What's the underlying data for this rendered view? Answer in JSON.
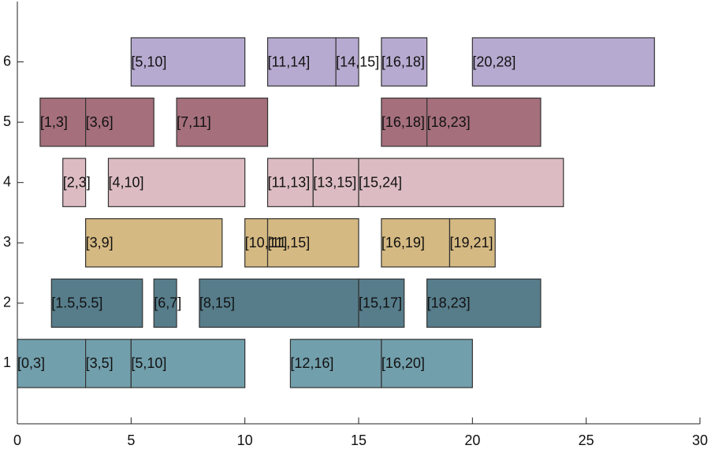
{
  "chart_data": {
    "type": "interval",
    "xlim": [
      0,
      30
    ],
    "xticks": [
      0,
      5,
      10,
      15,
      20,
      25,
      30
    ],
    "ylim": [
      0,
      7
    ],
    "yticks": [
      1,
      2,
      3,
      4,
      5,
      6
    ],
    "series": [
      {
        "row": 1,
        "color": "#729fac",
        "intervals": [
          {
            "start": 0,
            "end": 3,
            "label": "[0,3]"
          },
          {
            "start": 3,
            "end": 5,
            "label": "[3,5]"
          },
          {
            "start": 5,
            "end": 10,
            "label": "[5,10]"
          },
          {
            "start": 12,
            "end": 16,
            "label": "[12,16]"
          },
          {
            "start": 16,
            "end": 20,
            "label": "[16,20]"
          }
        ]
      },
      {
        "row": 2,
        "color": "#577d8b",
        "intervals": [
          {
            "start": 1.5,
            "end": 5.5,
            "label": "[1.5,5.5]"
          },
          {
            "start": 6,
            "end": 7,
            "label": "[6,7]"
          },
          {
            "start": 8,
            "end": 15,
            "label": "[8,15]"
          },
          {
            "start": 15,
            "end": 17,
            "label": "[15,17]"
          },
          {
            "start": 18,
            "end": 23,
            "label": "[18,23]"
          }
        ]
      },
      {
        "row": 3,
        "color": "#d5b982",
        "intervals": [
          {
            "start": 3,
            "end": 9,
            "label": "[3,9]"
          },
          {
            "start": 10,
            "end": 11,
            "label": "[10,11]"
          },
          {
            "start": 11,
            "end": 15,
            "label": "[11,15]"
          },
          {
            "start": 16,
            "end": 19,
            "label": "[16,19]"
          },
          {
            "start": 19,
            "end": 21,
            "label": "[19,21]"
          }
        ]
      },
      {
        "row": 4,
        "color": "#dcbcc2",
        "intervals": [
          {
            "start": 2,
            "end": 3,
            "label": "[2,3]"
          },
          {
            "start": 4,
            "end": 10,
            "label": "[4,10]"
          },
          {
            "start": 11,
            "end": 13,
            "label": "[11,13]"
          },
          {
            "start": 13,
            "end": 15,
            "label": "[13,15]"
          },
          {
            "start": 15,
            "end": 24,
            "label": "[15,24]"
          }
        ]
      },
      {
        "row": 5,
        "color": "#a56f7c",
        "intervals": [
          {
            "start": 1,
            "end": 3,
            "label": "[1,3]"
          },
          {
            "start": 3,
            "end": 6,
            "label": "[3,6]"
          },
          {
            "start": 7,
            "end": 11,
            "label": "[7,11]"
          },
          {
            "start": 16,
            "end": 18,
            "label": "[16,18]"
          },
          {
            "start": 18,
            "end": 23,
            "label": "[18,23]"
          }
        ]
      },
      {
        "row": 6,
        "color": "#b7aad0",
        "intervals": [
          {
            "start": 5,
            "end": 10,
            "label": "[5,10]"
          },
          {
            "start": 11,
            "end": 14,
            "label": "[11,14]"
          },
          {
            "start": 14,
            "end": 15,
            "label": "[14,15]"
          },
          {
            "start": 16,
            "end": 18,
            "label": "[16,18]"
          },
          {
            "start": 20,
            "end": 28,
            "label": "[20,28]"
          }
        ]
      }
    ]
  }
}
